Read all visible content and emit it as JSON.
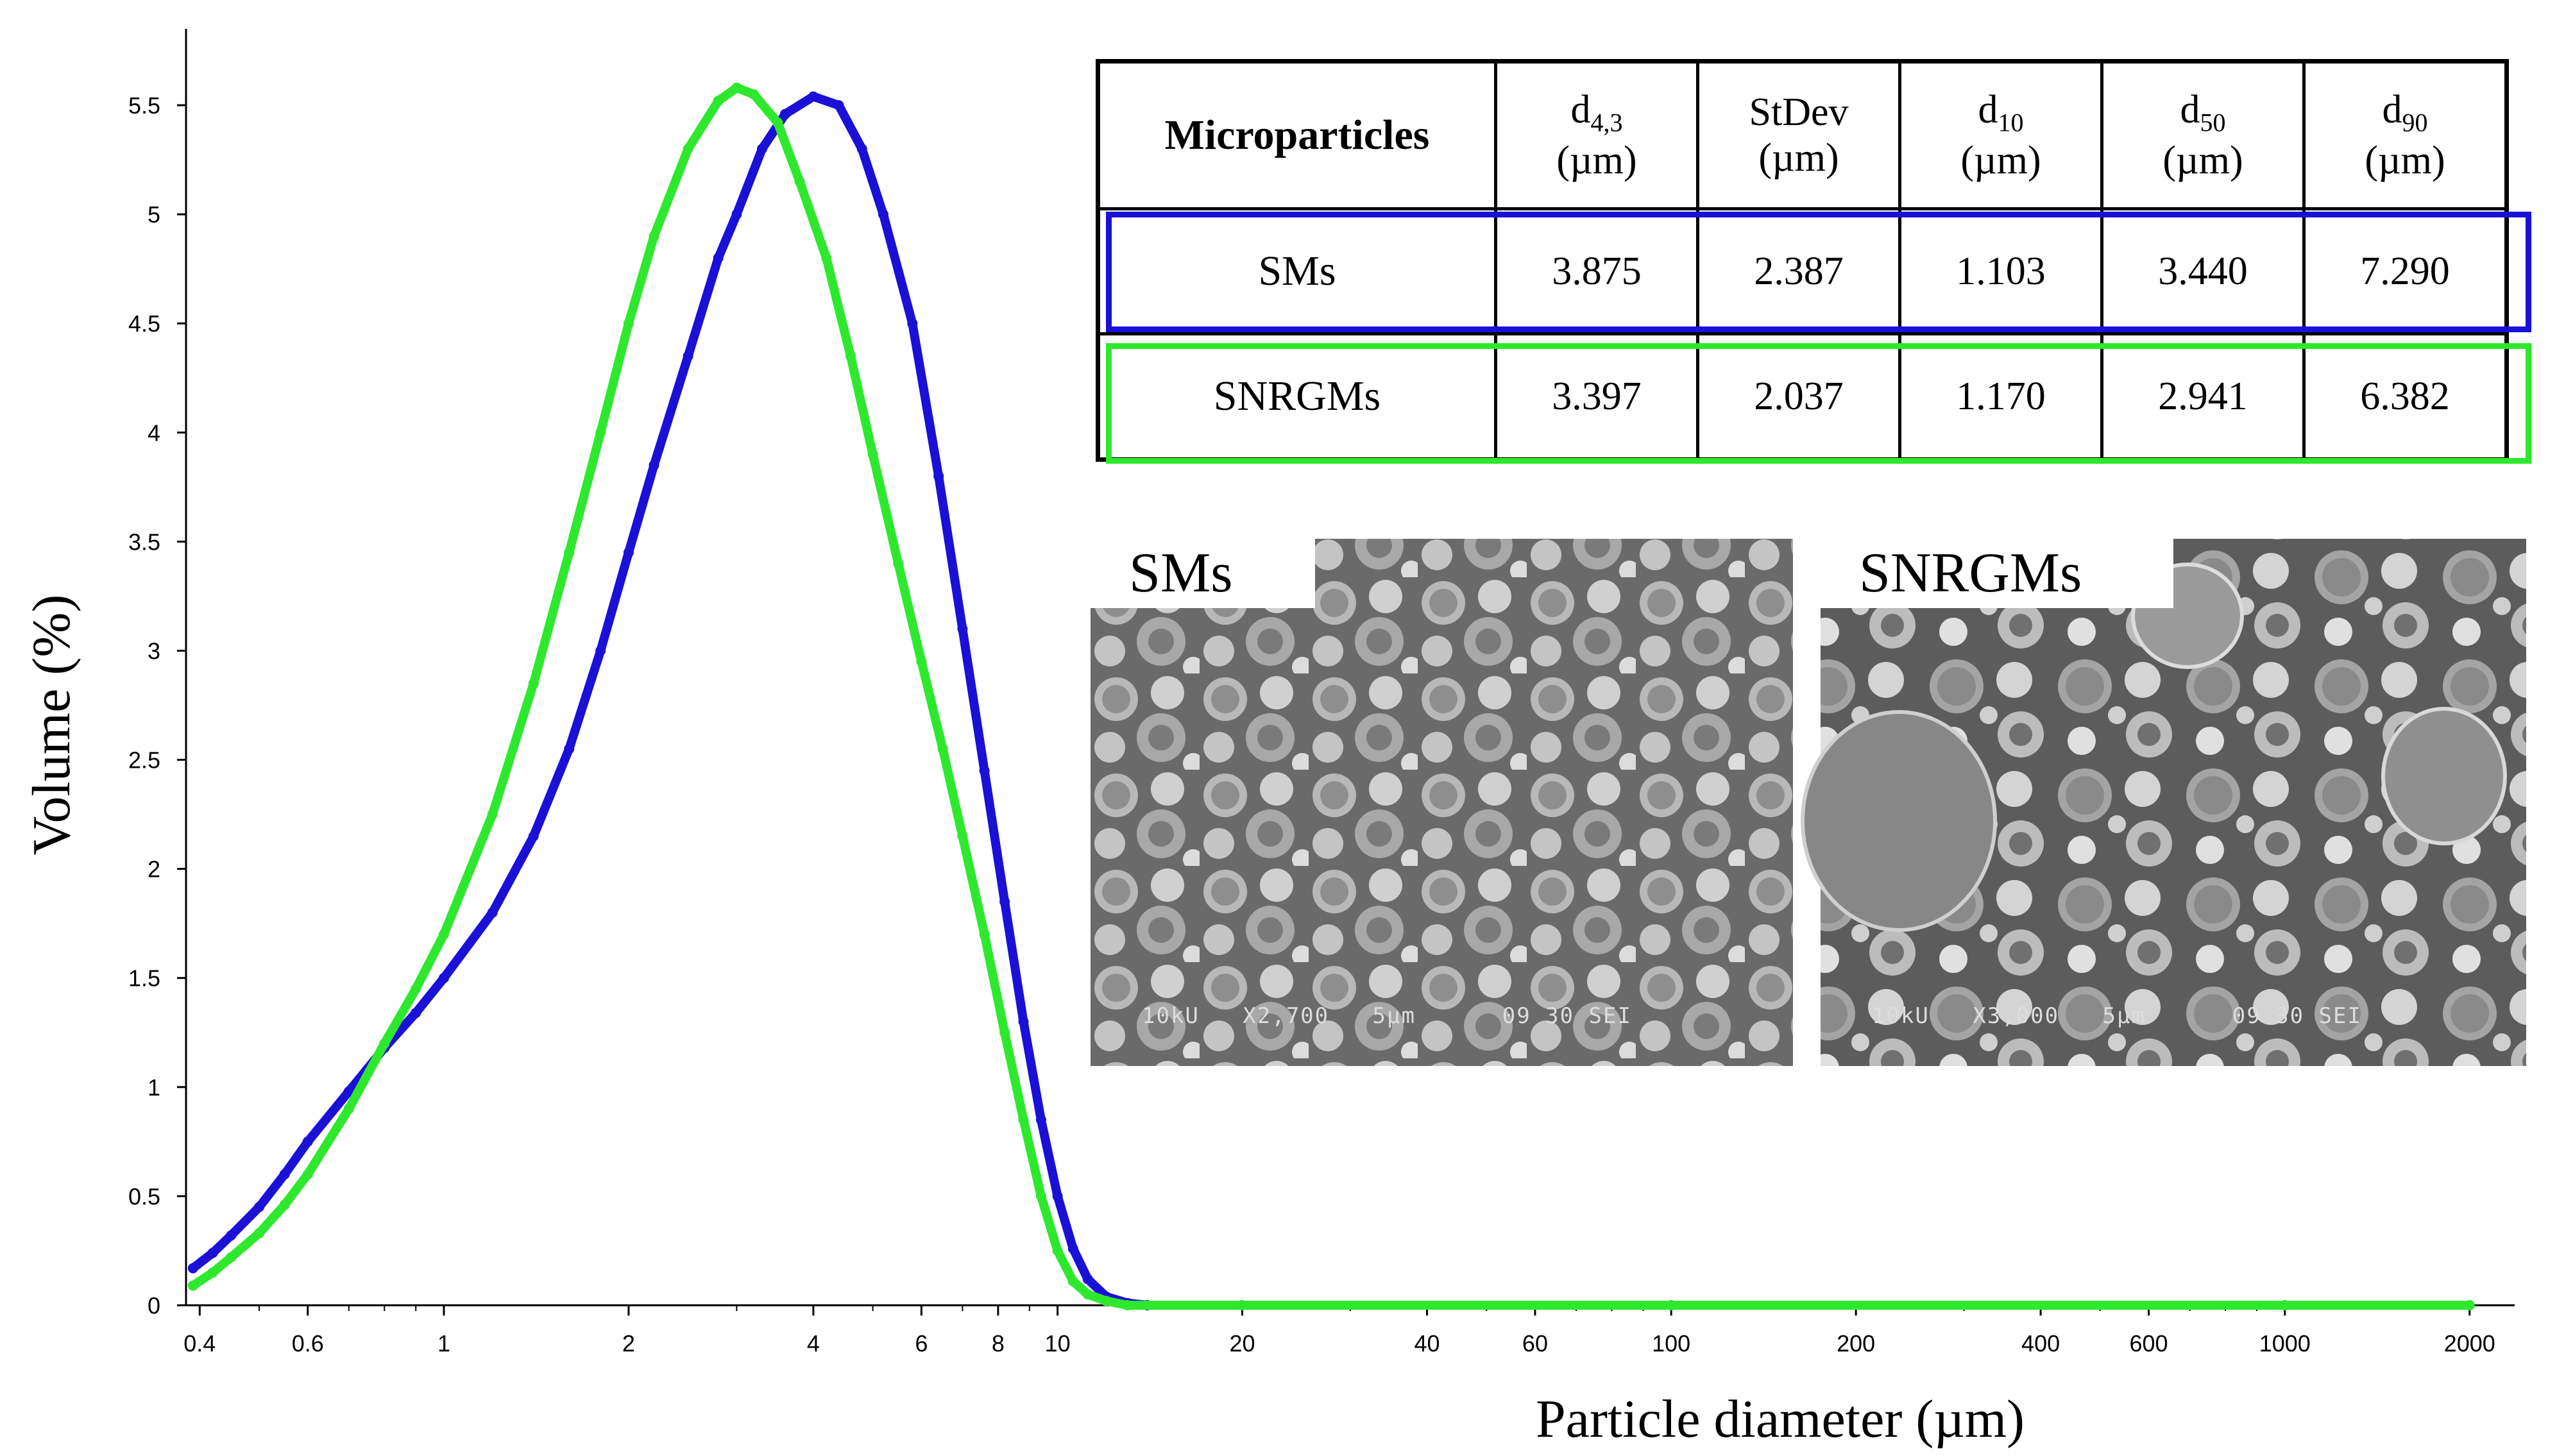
{
  "chart_data": {
    "type": "line",
    "xscale": "log",
    "xlim": [
      0.38,
      2100
    ],
    "ylim": [
      0,
      5.85
    ],
    "xlabel": "Particle diameter (µm)",
    "ylabel": "Volume (%)",
    "xticks": [
      "0.4",
      "0.6",
      "1",
      "2",
      "4",
      "6",
      "8",
      "10",
      "20",
      "40",
      "60",
      "100",
      "200",
      "400",
      "600",
      "1000",
      "2000"
    ],
    "yticks": [
      "0",
      "0.5",
      "1",
      "1.5",
      "2",
      "2.5",
      "3",
      "3.5",
      "4",
      "4.5",
      "5",
      "5.5"
    ],
    "series": [
      {
        "color": "#1a10d6",
        "x": [
          0.39,
          0.42,
          0.45,
          0.5,
          0.55,
          0.6,
          0.7,
          0.8,
          0.9,
          1.0,
          1.2,
          1.4,
          1.6,
          1.8,
          2.0,
          2.2,
          2.5,
          2.8,
          3.0,
          3.3,
          3.6,
          4.0,
          4.4,
          4.8,
          5.2,
          5.8,
          6.4,
          7.0,
          7.6,
          8.2,
          8.8,
          9.4,
          10.0,
          10.6,
          11.2,
          12.0,
          13.0,
          14.0,
          20,
          100,
          1000,
          2000
        ],
        "y": [
          0.17,
          0.24,
          0.32,
          0.45,
          0.6,
          0.75,
          0.98,
          1.18,
          1.34,
          1.5,
          1.8,
          2.15,
          2.55,
          3.0,
          3.45,
          3.85,
          4.35,
          4.8,
          5.0,
          5.3,
          5.46,
          5.54,
          5.5,
          5.3,
          5.0,
          4.5,
          3.8,
          3.1,
          2.45,
          1.85,
          1.3,
          0.85,
          0.5,
          0.26,
          0.12,
          0.04,
          0.01,
          0,
          0,
          0,
          0,
          0
        ]
      },
      {
        "color": "#2ee82e",
        "x": [
          0.39,
          0.42,
          0.45,
          0.5,
          0.55,
          0.6,
          0.7,
          0.8,
          0.9,
          1.0,
          1.2,
          1.4,
          1.6,
          1.8,
          2.0,
          2.2,
          2.5,
          2.8,
          3.0,
          3.2,
          3.5,
          3.8,
          4.2,
          4.6,
          5.0,
          5.5,
          6.0,
          6.5,
          7.0,
          7.6,
          8.2,
          8.8,
          9.4,
          10.0,
          10.6,
          11.2,
          12.0,
          13.0,
          20,
          100,
          1000,
          2000
        ],
        "y": [
          0.09,
          0.15,
          0.22,
          0.33,
          0.46,
          0.6,
          0.9,
          1.2,
          1.45,
          1.7,
          2.25,
          2.85,
          3.45,
          4.0,
          4.5,
          4.9,
          5.3,
          5.52,
          5.58,
          5.55,
          5.42,
          5.15,
          4.8,
          4.35,
          3.9,
          3.4,
          2.95,
          2.55,
          2.15,
          1.7,
          1.25,
          0.85,
          0.5,
          0.25,
          0.11,
          0.05,
          0.02,
          0,
          0,
          0,
          0,
          0
        ]
      }
    ]
  },
  "table": {
    "header": {
      "microparticles": "Microparticles",
      "d43": "d",
      "d43_sub": "4,3",
      "d43_unit": "(µm)",
      "stdev": "StDev",
      "stdev_unit": "(µm)",
      "d10": "d",
      "d10_sub": "10",
      "d10_unit": "(µm)",
      "d50": "d",
      "d50_sub": "50",
      "d50_unit": "(µm)",
      "d90": "d",
      "d90_sub": "90",
      "d90_unit": "(µm)"
    },
    "rows": [
      {
        "name": "SMs",
        "d43": "3.875",
        "stdev": "2.387",
        "d10": "1.103",
        "d50": "3.440",
        "d90": "7.290",
        "outline_color": "#1a10d6"
      },
      {
        "name": "SNRGMs",
        "d43": "3.397",
        "stdev": "2.037",
        "d10": "1.170",
        "d50": "2.941",
        "d90": "6.382",
        "outline_color": "#2ee82e"
      }
    ]
  },
  "images": [
    {
      "label": "SMs",
      "caption": "10kU   X2,700   5µm      09 30 SEI"
    },
    {
      "label": "SNRGMs",
      "caption": "10kU   X3,000   5µm      09 30 SEI"
    }
  ]
}
